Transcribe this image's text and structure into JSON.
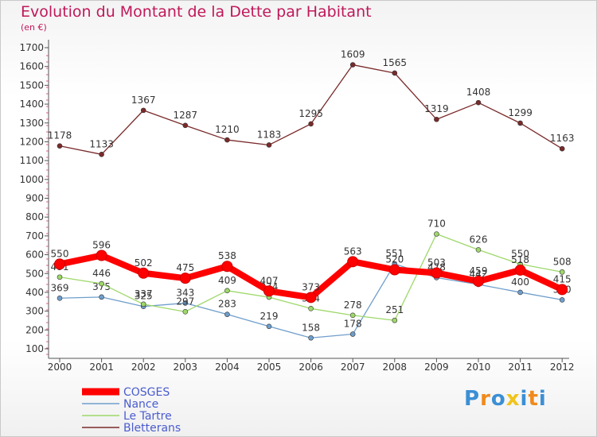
{
  "title": "Evolution du Montant de la Dette par Habitant",
  "subtitle": "(en €)",
  "brand": "Proxiti",
  "chart_data": {
    "type": "line",
    "title": "Evolution du Montant de la Dette par Habitant",
    "ylabel": "(en €)",
    "xlabel": "",
    "x": [
      "2000",
      "2001",
      "2002",
      "2003",
      "2004",
      "2005",
      "2006",
      "2007",
      "2008",
      "2009",
      "2010",
      "2011",
      "2012"
    ],
    "ylim": [
      100,
      1700
    ],
    "yticks": [
      100,
      200,
      300,
      400,
      500,
      600,
      700,
      800,
      900,
      1000,
      1100,
      1200,
      1300,
      1400,
      1500,
      1600,
      1700
    ],
    "grid": false,
    "legend": "bottom-left",
    "series": [
      {
        "name": "Bletterans",
        "color": "#7a2a2a",
        "values": [
          1178,
          1133,
          1367,
          1287,
          1210,
          1183,
          1295,
          1609,
          1565,
          1319,
          1408,
          1299,
          1163
        ],
        "labels": [
          "1178",
          "1133",
          "1367",
          "1287",
          "1210",
          "1183",
          "1295",
          "1609",
          "1565",
          "1319",
          "1408",
          "1299",
          "1163"
        ]
      },
      {
        "name": "Nance",
        "color": "#6f9ecb",
        "values": [
          369,
          375,
          325,
          343,
          283,
          219,
          158,
          178,
          551,
          478,
          442,
          400,
          360
        ],
        "labels": [
          "369",
          "375",
          "325",
          "343",
          "283",
          "219",
          "158",
          "178",
          "551",
          "478",
          "442",
          "400",
          "360"
        ]
      },
      {
        "name": "Le Tartre",
        "color": "#9ed86a",
        "values": [
          481,
          446,
          337,
          297,
          409,
          374,
          314,
          278,
          251,
          710,
          626,
          550,
          508
        ],
        "labels": [
          "481",
          "446",
          "337",
          "297",
          "409",
          "374",
          "314",
          "278",
          "251",
          "710",
          "626",
          "550",
          "508"
        ]
      },
      {
        "name": "COSGES",
        "color": "#ff0000",
        "values": [
          550,
          596,
          502,
          475,
          538,
          407,
          373,
          563,
          520,
          503,
          459,
          518,
          415
        ],
        "labels": [
          "550",
          "596",
          "502",
          "475",
          "538",
          "407",
          "373",
          "563",
          "520",
          "503",
          "459",
          "518",
          "415"
        ]
      }
    ]
  }
}
